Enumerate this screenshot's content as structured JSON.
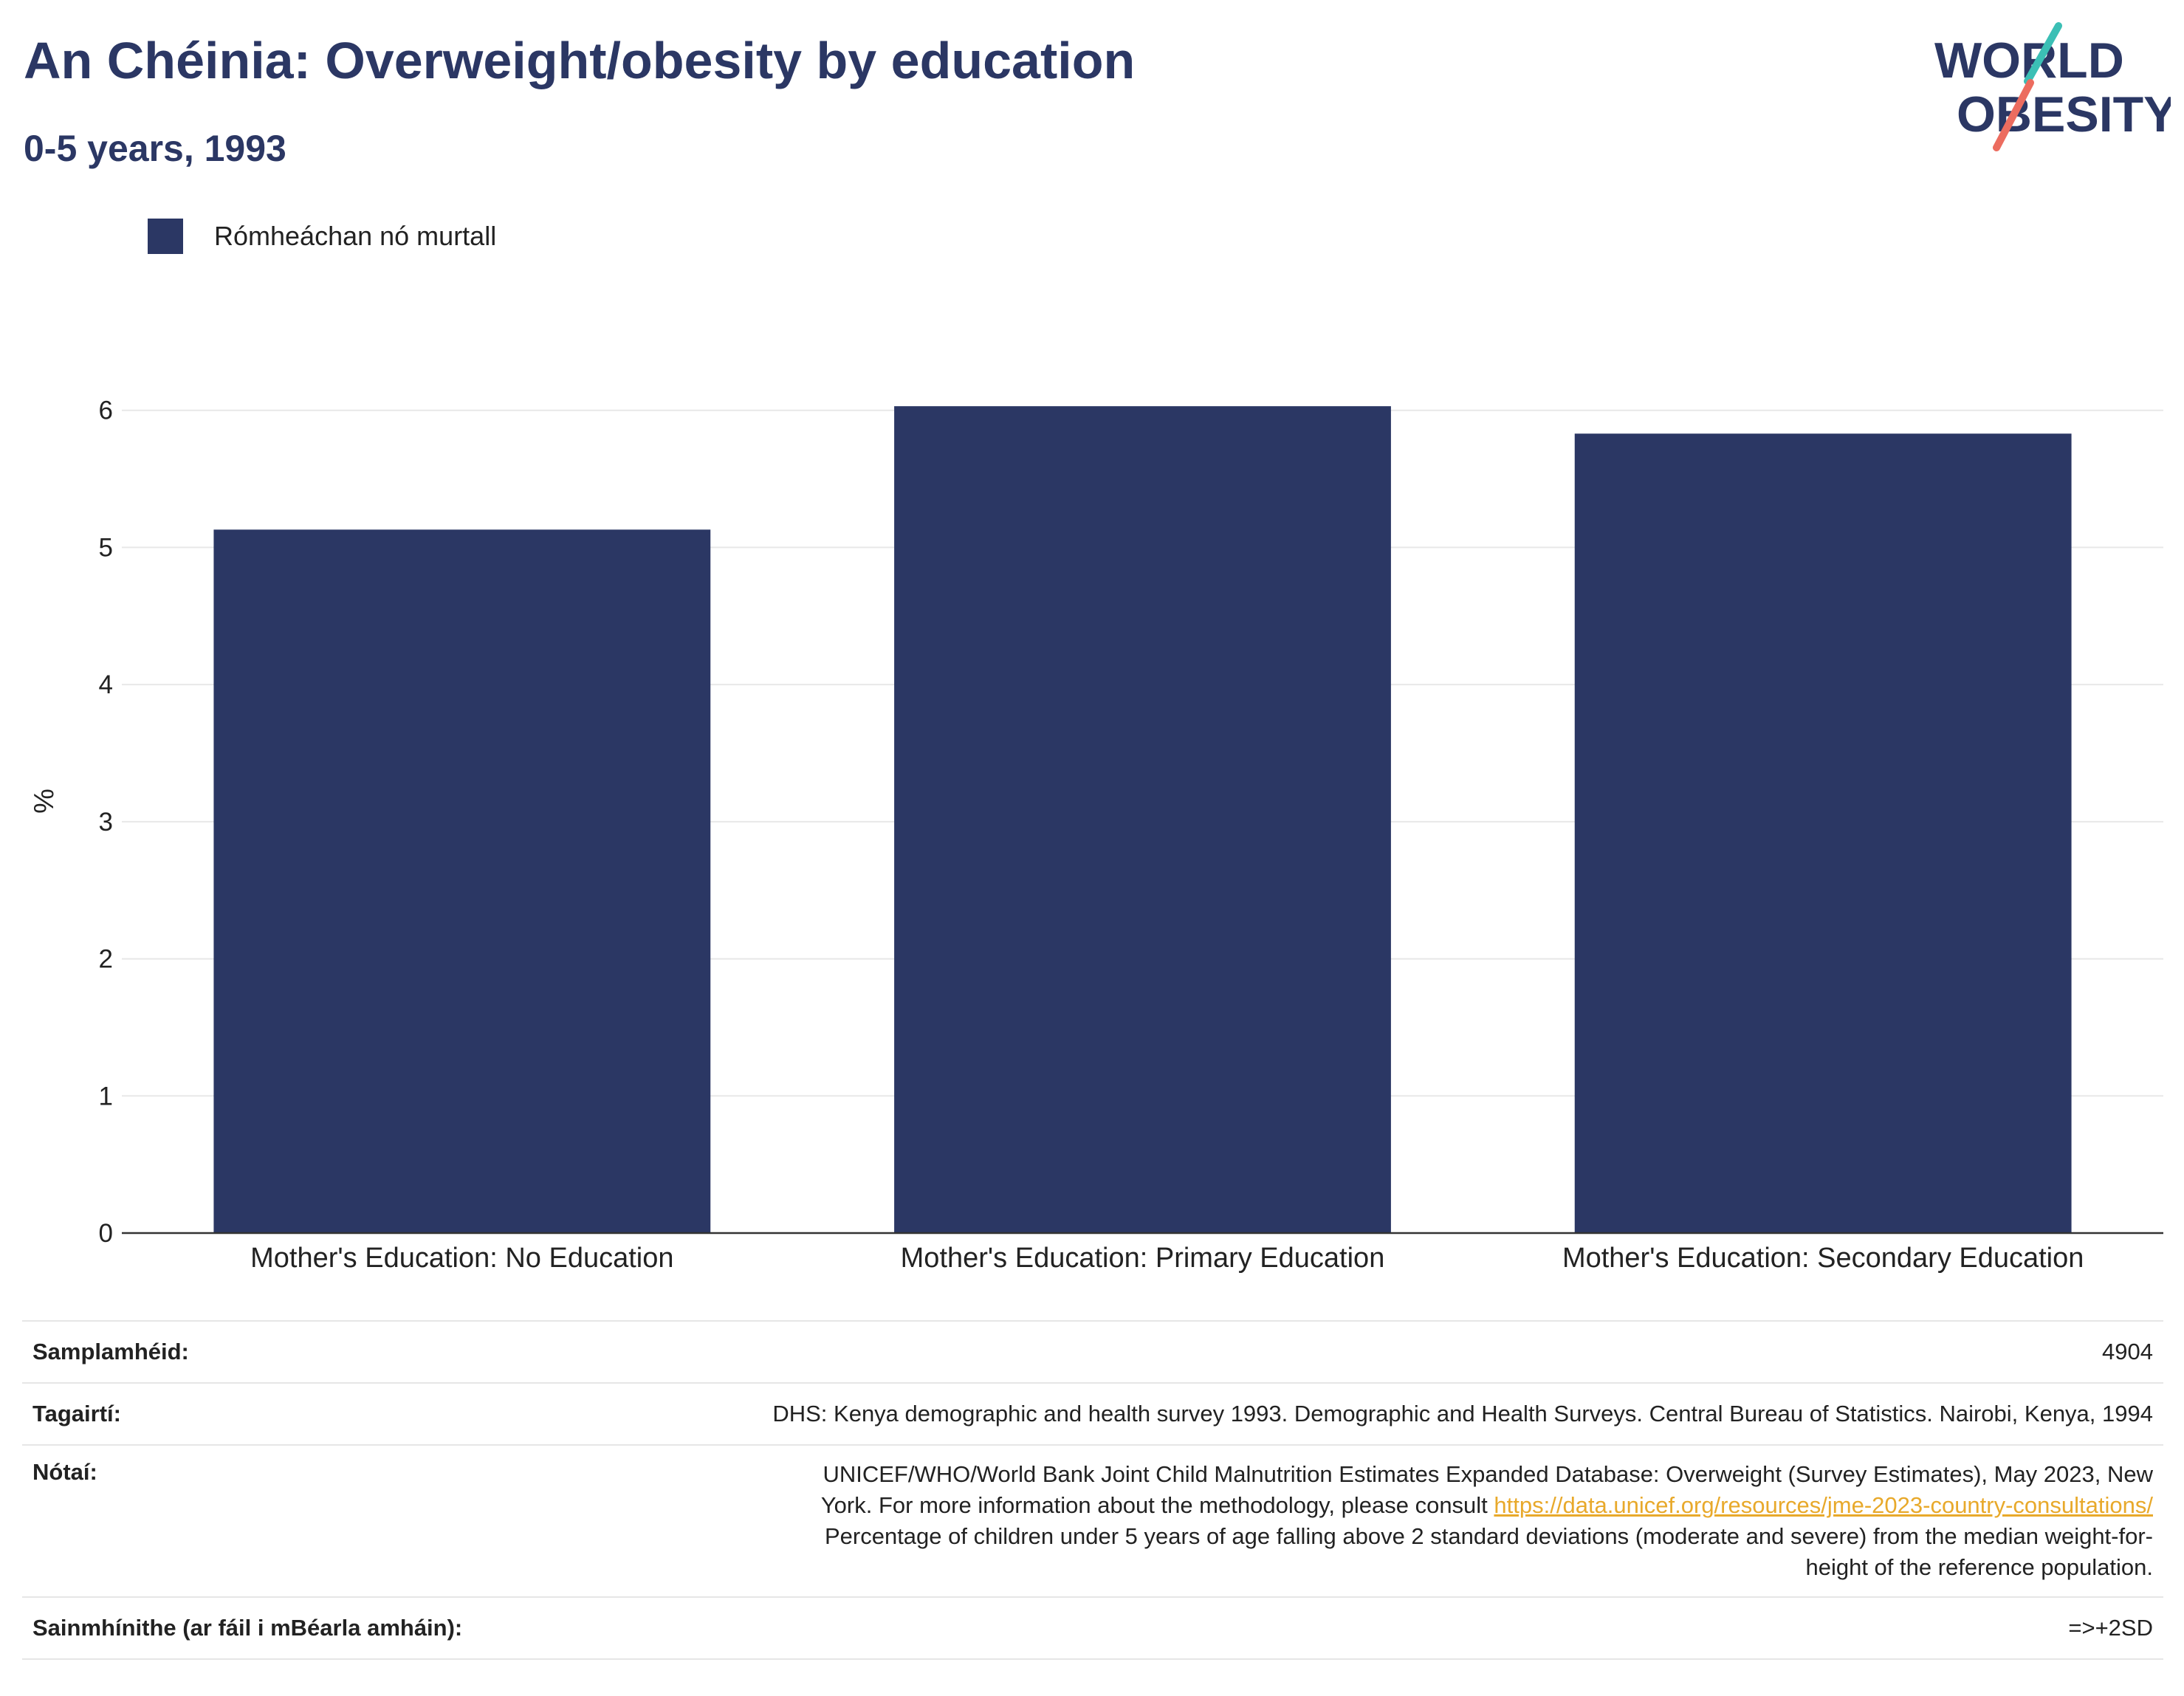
{
  "header": {
    "title": "An Chéinia: Overweight/obesity by education",
    "subtitle": "0-5 years, 1993"
  },
  "logo": {
    "line1": "WORLD",
    "line2": "OBESITY"
  },
  "colors": {
    "bar": "#2b3764",
    "title": "#2b3764",
    "logo_teal": "#3bbfb5",
    "logo_coral": "#ec6c5f",
    "link": "#e8a92b"
  },
  "chart_data": {
    "type": "bar",
    "categories": [
      "Mother's Education: No Education",
      "Mother's Education: Primary Education",
      "Mother's Education: Secondary Education"
    ],
    "series": [
      {
        "name": "Rómheáchan nó murtall",
        "values": [
          5.13,
          6.03,
          5.83
        ]
      }
    ],
    "xlabel": "",
    "ylabel": "%",
    "ylim": [
      0,
      6.3
    ],
    "yticks": [
      0,
      1,
      2,
      3,
      4,
      5,
      6
    ],
    "grid": true,
    "legend_position": "top-left"
  },
  "footer": {
    "sample_label": "Samplamhéid:",
    "sample_value": "4904",
    "refs_label": "Tagairtí:",
    "refs_value": "DHS: Kenya demographic and health survey 1993. Demographic and Health Surveys. Central Bureau of Statistics. Nairobi, Kenya, 1994",
    "notes_label": "Nótaí:",
    "notes_line1": "UNICEF/WHO/World Bank Joint Child Malnutrition Estimates Expanded Database: Overweight (Survey Estimates), May 2023, New",
    "notes_line2_pre": "York. For more information about the methodology, please consult ",
    "notes_link": "https://data.unicef.org/resources/jme-2023-country-consultations/",
    "notes_line3": "Percentage of children under 5 years of age falling above 2 standard deviations (moderate and severe) from the median weight-for-",
    "notes_line4": "height of the reference population.",
    "defs_label": "Sainmhínithe (ar fáil i mBéarla amháin):",
    "defs_value": "=>+2SD"
  }
}
